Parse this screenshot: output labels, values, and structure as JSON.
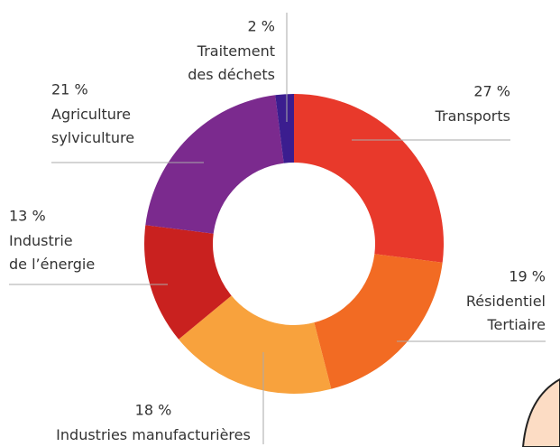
{
  "chart_data": {
    "type": "donut",
    "categories": [
      "Transports",
      "Résidentiel\nTertiaire",
      "Industries manufacturières",
      "Industrie\nde l’énergie",
      "Agriculture\nsylviculture",
      "Traitement\ndes déchets"
    ],
    "values": [
      27,
      19,
      18,
      13,
      21,
      2
    ],
    "value_labels": [
      "27 %",
      "19 %",
      "18 %",
      "13 %",
      "21 %",
      "2 %"
    ],
    "colors": [
      "#e8392b",
      "#f26b23",
      "#f8a23d",
      "#c9211f",
      "#7b2a8e",
      "#3b1d8f"
    ]
  }
}
